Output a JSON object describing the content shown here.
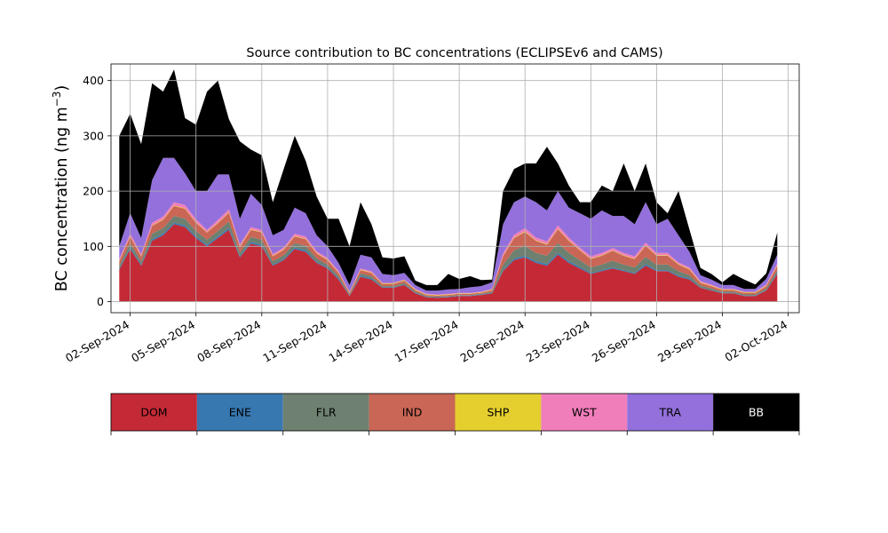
{
  "chart_data": {
    "type": "area",
    "stacked": true,
    "title": "Source contribution to BC concentrations (ECLIPSEv6 and CAMS)",
    "ylabel": "BC concentration (ng m",
    "ylabel_superscript": "−3",
    "ylabel_close": ")",
    "xlabel": "",
    "ylim": [
      -20,
      430
    ],
    "xlim": [
      "2024-09-01T03:00",
      "2024-10-02T12:00"
    ],
    "yticks": [
      0,
      100,
      200,
      300,
      400
    ],
    "xtick_labels": [
      "02-Sep-2024",
      "05-Sep-2024",
      "08-Sep-2024",
      "11-Sep-2024",
      "14-Sep-2024",
      "17-Sep-2024",
      "20-Sep-2024",
      "23-Sep-2024",
      "26-Sep-2024",
      "29-Sep-2024",
      "02-Oct-2024"
    ],
    "grid": true,
    "legend": "below",
    "x": [
      "2024-09-01T12:00",
      "2024-09-02T00:00",
      "2024-09-02T12:00",
      "2024-09-03T00:00",
      "2024-09-03T12:00",
      "2024-09-04T00:00",
      "2024-09-04T12:00",
      "2024-09-05T00:00",
      "2024-09-05T12:00",
      "2024-09-06T00:00",
      "2024-09-06T12:00",
      "2024-09-07T00:00",
      "2024-09-07T12:00",
      "2024-09-08T00:00",
      "2024-09-08T12:00",
      "2024-09-09T00:00",
      "2024-09-09T12:00",
      "2024-09-10T00:00",
      "2024-09-10T12:00",
      "2024-09-11T00:00",
      "2024-09-11T12:00",
      "2024-09-12T00:00",
      "2024-09-12T12:00",
      "2024-09-13T00:00",
      "2024-09-13T12:00",
      "2024-09-14T00:00",
      "2024-09-14T12:00",
      "2024-09-15T00:00",
      "2024-09-15T12:00",
      "2024-09-16T00:00",
      "2024-09-16T12:00",
      "2024-09-17T00:00",
      "2024-09-17T12:00",
      "2024-09-18T00:00",
      "2024-09-18T12:00",
      "2024-09-19T00:00",
      "2024-09-19T12:00",
      "2024-09-20T00:00",
      "2024-09-20T12:00",
      "2024-09-21T00:00",
      "2024-09-21T12:00",
      "2024-09-22T00:00",
      "2024-09-22T12:00",
      "2024-09-23T00:00",
      "2024-09-23T12:00",
      "2024-09-24T00:00",
      "2024-09-24T12:00",
      "2024-09-25T00:00",
      "2024-09-25T12:00",
      "2024-09-26T00:00",
      "2024-09-26T12:00",
      "2024-09-27T00:00",
      "2024-09-27T12:00",
      "2024-09-28T00:00",
      "2024-09-28T12:00",
      "2024-09-29T00:00",
      "2024-09-29T12:00",
      "2024-09-30T00:00",
      "2024-09-30T12:00",
      "2024-10-01T00:00",
      "2024-10-01T12:00"
    ],
    "series": [
      {
        "name": "DOM",
        "color": "#c42a36",
        "values": [
          58,
          95,
          65,
          110,
          120,
          140,
          135,
          115,
          100,
          115,
          130,
          80,
          105,
          100,
          65,
          75,
          95,
          90,
          70,
          60,
          40,
          10,
          45,
          40,
          25,
          25,
          30,
          15,
          8,
          7,
          8,
          10,
          10,
          12,
          15,
          55,
          75,
          80,
          70,
          65,
          85,
          70,
          60,
          50,
          55,
          60,
          55,
          50,
          65,
          55,
          55,
          45,
          40,
          25,
          20,
          15,
          15,
          10,
          10,
          20,
          50
        ]
      },
      {
        "name": "ENE",
        "color": "#3878b0",
        "values": [
          2,
          3,
          2,
          3,
          3,
          3,
          3,
          3,
          3,
          3,
          3,
          2,
          3,
          3,
          2,
          2,
          3,
          3,
          2,
          2,
          2,
          1,
          2,
          2,
          1,
          1,
          1,
          1,
          1,
          1,
          1,
          1,
          1,
          1,
          1,
          2,
          3,
          3,
          3,
          3,
          3,
          3,
          3,
          2,
          2,
          2,
          2,
          2,
          3,
          2,
          2,
          2,
          2,
          1,
          1,
          1,
          1,
          1,
          1,
          1,
          2
        ]
      },
      {
        "name": "FLR",
        "color": "#6e8070",
        "values": [
          5,
          8,
          6,
          10,
          10,
          12,
          12,
          10,
          9,
          10,
          12,
          7,
          9,
          9,
          6,
          7,
          8,
          8,
          6,
          5,
          4,
          2,
          4,
          4,
          2,
          2,
          3,
          2,
          1,
          1,
          1,
          1,
          1,
          1,
          2,
          10,
          15,
          18,
          15,
          15,
          18,
          15,
          12,
          10,
          10,
          12,
          10,
          10,
          13,
          10,
          10,
          8,
          6,
          3,
          3,
          2,
          2,
          2,
          2,
          3,
          5
        ]
      },
      {
        "name": "IND",
        "color": "#c96655",
        "values": [
          8,
          12,
          9,
          14,
          15,
          18,
          18,
          15,
          13,
          14,
          16,
          10,
          13,
          13,
          9,
          10,
          12,
          12,
          9,
          8,
          6,
          3,
          6,
          6,
          4,
          4,
          4,
          3,
          2,
          2,
          2,
          2,
          2,
          2,
          3,
          15,
          22,
          25,
          22,
          20,
          25,
          22,
          18,
          15,
          16,
          18,
          16,
          15,
          20,
          16,
          16,
          12,
          10,
          5,
          4,
          3,
          3,
          3,
          3,
          4,
          8
        ]
      },
      {
        "name": "SHP",
        "color": "#e4cf2e",
        "values": [
          1,
          1,
          1,
          1,
          1,
          1,
          1,
          1,
          1,
          1,
          1,
          1,
          1,
          1,
          1,
          1,
          1,
          1,
          1,
          1,
          1,
          1,
          1,
          1,
          1,
          1,
          1,
          1,
          1,
          1,
          1,
          1,
          1,
          1,
          1,
          1,
          1,
          1,
          1,
          1,
          1,
          1,
          1,
          1,
          1,
          1,
          1,
          1,
          1,
          1,
          1,
          1,
          1,
          1,
          1,
          1,
          1,
          1,
          1,
          1,
          1
        ]
      },
      {
        "name": "WST",
        "color": "#f07ebb",
        "values": [
          3,
          4,
          3,
          5,
          5,
          6,
          6,
          5,
          4,
          5,
          5,
          3,
          4,
          4,
          3,
          3,
          4,
          4,
          3,
          3,
          2,
          1,
          2,
          2,
          1,
          1,
          1,
          1,
          1,
          1,
          1,
          1,
          1,
          1,
          1,
          4,
          5,
          6,
          5,
          5,
          6,
          5,
          4,
          4,
          4,
          4,
          4,
          4,
          5,
          4,
          4,
          3,
          3,
          2,
          2,
          1,
          1,
          1,
          1,
          2,
          3
        ]
      },
      {
        "name": "TRA",
        "color": "#9370db",
        "values": [
          23,
          37,
          29,
          77,
          106,
          80,
          57,
          51,
          70,
          82,
          63,
          47,
          60,
          45,
          34,
          32,
          47,
          42,
          29,
          21,
          15,
          12,
          25,
          25,
          16,
          14,
          12,
          7,
          6,
          7,
          8,
          7,
          10,
          10,
          12,
          53,
          59,
          57,
          64,
          56,
          62,
          54,
          62,
          68,
          77,
          58,
          67,
          58,
          73,
          52,
          62,
          49,
          28,
          11,
          9,
          7,
          7,
          5,
          5,
          10,
          16
        ]
      },
      {
        "name": "BB",
        "color": "#000000",
        "values": [
          200,
          180,
          170,
          175,
          120,
          160,
          100,
          120,
          180,
          170,
          100,
          140,
          80,
          90,
          60,
          110,
          130,
          95,
          70,
          50,
          80,
          70,
          95,
          60,
          30,
          30,
          30,
          8,
          10,
          10,
          28,
          18,
          20,
          11,
          5,
          60,
          60,
          60,
          70,
          115,
          50,
          40,
          20,
          30,
          45,
          45,
          95,
          60,
          70,
          40,
          10,
          80,
          40,
          13,
          10,
          5,
          20,
          17,
          8,
          10,
          40
        ]
      }
    ]
  }
}
